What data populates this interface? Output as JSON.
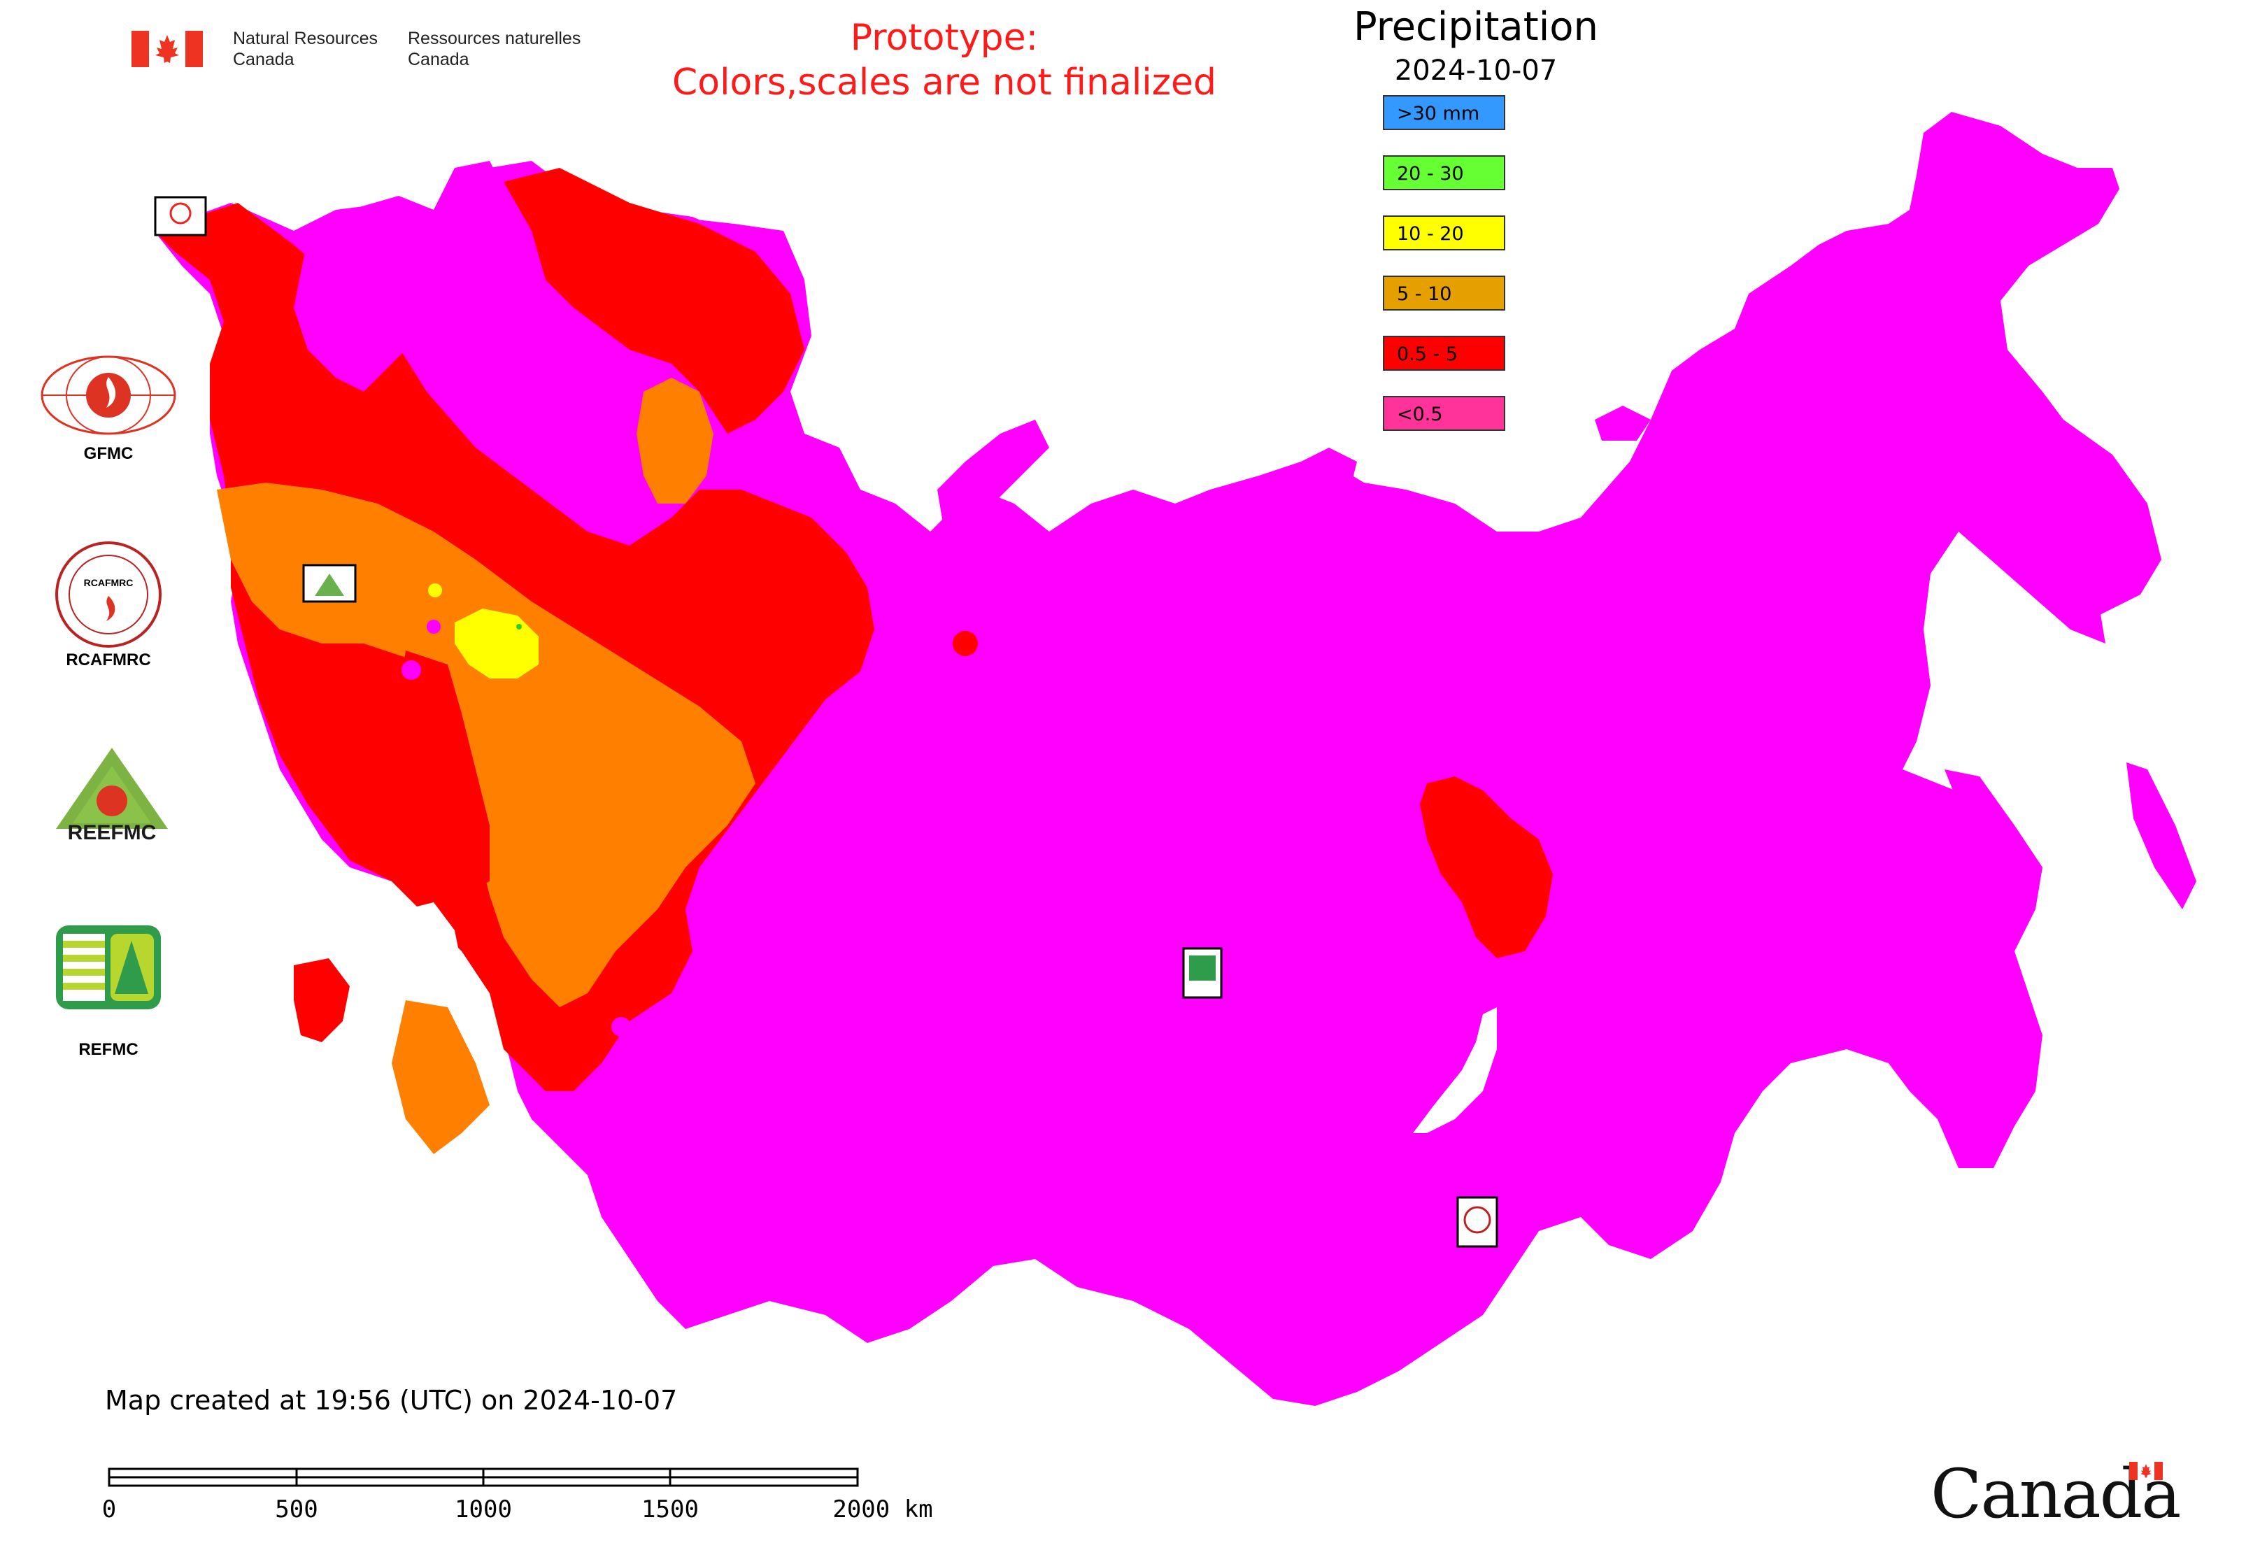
{
  "header": {
    "dept_en_line1": "Natural Resources",
    "dept_en_line2": "Canada",
    "dept_fr_line1": "Ressources naturelles",
    "dept_fr_line2": "Canada",
    "prototype_line1": "Prototype:",
    "prototype_line2": "Colors,scales are not finalized"
  },
  "legend": {
    "title": "Precipitation",
    "date": "2024-10-07",
    "items": [
      {
        "label": ">30 mm",
        "color": "#3399ff"
      },
      {
        "label": "20 - 30",
        "color": "#66ff33"
      },
      {
        "label": "10 - 20",
        "color": "#ffff00"
      },
      {
        "label": "5 - 10",
        "color": "#e5a000"
      },
      {
        "label": "0.5 - 5",
        "color": "#ff0000"
      },
      {
        "label": "<0.5",
        "color": "#ff3399"
      }
    ]
  },
  "map_colors": {
    "lt_0_5": "#ff00ff",
    "r_0_5_5": "#ff0000",
    "r_5_10": "#ff8000",
    "r_10_20": "#ffff00",
    "r_20_30": "#33cc33"
  },
  "side_logos": {
    "gfmc": "GFMC",
    "rcafmrc": "RCAFMRC",
    "reefmc": "REEFMC",
    "refmc": "REFMC"
  },
  "map_markers": {
    "gfmc": "GFMC",
    "reefmc": "REEFMC",
    "refmc": "REFMC",
    "rcafmrc": "RCAFMRC"
  },
  "footer": {
    "created": "Map created at 19:56 (UTC) on 2024-10-07",
    "scale_labels": [
      "0",
      "500",
      "1000",
      "1500",
      "2000 km"
    ],
    "wordmark": "Canada"
  }
}
